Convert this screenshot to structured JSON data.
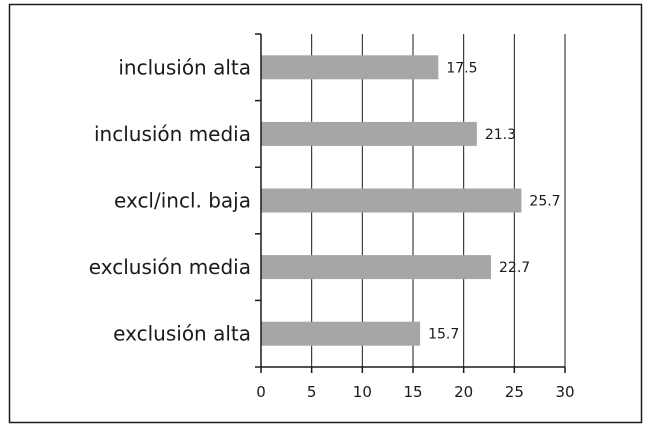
{
  "chart_data": {
    "type": "bar",
    "orientation": "horizontal",
    "categories": [
      "inclusión alta",
      "inclusión media",
      "excl/incl. baja",
      "exclusión media",
      "exclusión alta"
    ],
    "values": [
      17.5,
      21.3,
      25.7,
      22.7,
      15.7
    ],
    "value_labels": [
      "17.5",
      "21.3",
      "25.7",
      "22.7",
      "15.7"
    ],
    "x_ticks": [
      "0",
      "5",
      "10",
      "15",
      "20",
      "25",
      "30"
    ],
    "xlim": [
      0,
      30
    ],
    "grid": "vertical",
    "title": "",
    "xlabel": "",
    "ylabel": "",
    "colors": {
      "bar": "#a6a6a6",
      "axis": "#1a1a1a",
      "frame": "#1a1a1a",
      "background": "#ffffff"
    }
  }
}
